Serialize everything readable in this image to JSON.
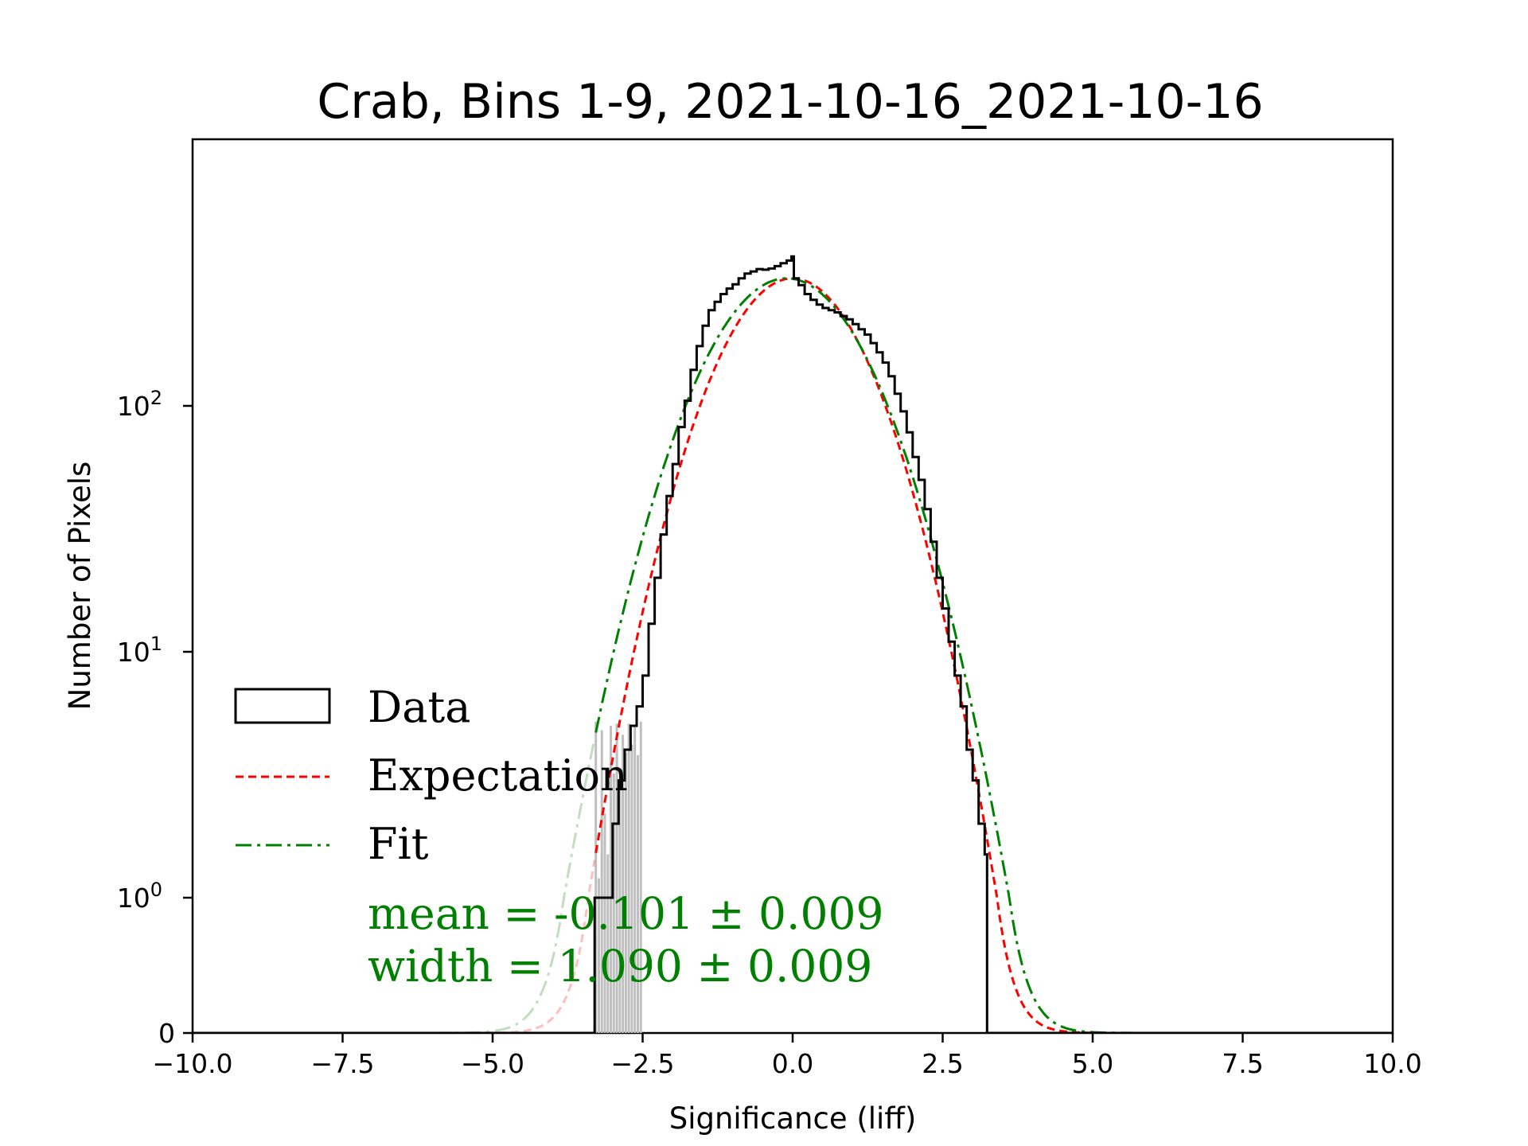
{
  "chart_data": {
    "type": "histogram",
    "title": "Crab, Bins 1-9, 2021-10-16_2021-10-16",
    "xlabel": "Significance (liff)",
    "ylabel": "Number of Pixels",
    "xlim": [
      -10,
      10
    ],
    "yscale": "symlog",
    "x_ticks": [
      -10,
      -7.5,
      -5,
      -2.5,
      0,
      2.5,
      5,
      7.5,
      10
    ],
    "x_tick_labels": [
      "−10.0",
      "−7.5",
      "−5.0",
      "−2.5",
      "0.0",
      "2.5",
      "5.0",
      "7.5",
      "10.0"
    ],
    "y_ticks": [
      {
        "value": 0,
        "label": "0"
      },
      {
        "value": 1,
        "label": "10",
        "exp": "0"
      },
      {
        "value": 10,
        "label": "10",
        "exp": "1"
      },
      {
        "value": 100,
        "label": "10",
        "exp": "2"
      }
    ],
    "data_hist": {
      "name": "Data",
      "bin_width": 0.05,
      "points": [
        [
          -3.3,
          1
        ],
        [
          -3.2,
          1
        ],
        [
          -3.1,
          1
        ],
        [
          -3.0,
          2
        ],
        [
          -2.9,
          3
        ],
        [
          -2.8,
          4
        ],
        [
          -2.7,
          5
        ],
        [
          -2.6,
          6
        ],
        [
          -2.5,
          8
        ],
        [
          -2.4,
          13
        ],
        [
          -2.3,
          20
        ],
        [
          -2.2,
          30
        ],
        [
          -2.1,
          43
        ],
        [
          -2.0,
          58
        ],
        [
          -1.9,
          82
        ],
        [
          -1.8,
          105
        ],
        [
          -1.7,
          140
        ],
        [
          -1.6,
          175
        ],
        [
          -1.5,
          212
        ],
        [
          -1.4,
          245
        ],
        [
          -1.3,
          265
        ],
        [
          -1.2,
          285
        ],
        [
          -1.1,
          300
        ],
        [
          -1.0,
          312
        ],
        [
          -0.9,
          330
        ],
        [
          -0.8,
          345
        ],
        [
          -0.7,
          352
        ],
        [
          -0.6,
          360
        ],
        [
          -0.5,
          358
        ],
        [
          -0.4,
          362
        ],
        [
          -0.3,
          370
        ],
        [
          -0.2,
          380
        ],
        [
          -0.1,
          390
        ],
        [
          -0.02,
          405
        ],
        [
          0.02,
          330
        ],
        [
          0.1,
          310
        ],
        [
          0.2,
          285
        ],
        [
          0.3,
          270
        ],
        [
          0.4,
          258
        ],
        [
          0.5,
          250
        ],
        [
          0.6,
          245
        ],
        [
          0.7,
          240
        ],
        [
          0.8,
          232
        ],
        [
          0.9,
          225
        ],
        [
          1.0,
          215
        ],
        [
          1.1,
          205
        ],
        [
          1.2,
          195
        ],
        [
          1.3,
          180
        ],
        [
          1.4,
          165
        ],
        [
          1.5,
          150
        ],
        [
          1.6,
          132
        ],
        [
          1.7,
          112
        ],
        [
          1.8,
          95
        ],
        [
          1.9,
          78
        ],
        [
          2.0,
          62
        ],
        [
          2.1,
          50
        ],
        [
          2.2,
          38
        ],
        [
          2.3,
          28
        ],
        [
          2.4,
          20
        ],
        [
          2.5,
          15
        ],
        [
          2.6,
          11
        ],
        [
          2.7,
          8
        ],
        [
          2.8,
          6
        ],
        [
          2.9,
          4
        ],
        [
          3.0,
          3
        ],
        [
          3.1,
          2
        ],
        [
          3.2,
          1.5
        ],
        [
          3.24,
          0
        ]
      ]
    },
    "low_stats_bins": {
      "points": [
        [
          -3.3,
          5.2
        ],
        [
          -3.25,
          1.2
        ],
        [
          -3.2,
          4.8
        ],
        [
          -3.15,
          2.2
        ],
        [
          -3.1,
          1.5
        ],
        [
          -3.05,
          5.0
        ],
        [
          -3.0,
          3.2
        ],
        [
          -2.95,
          5.1
        ],
        [
          -2.9,
          3.0
        ],
        [
          -2.85,
          4.6
        ],
        [
          -2.8,
          3.9
        ],
        [
          -2.75,
          5.1
        ],
        [
          -2.7,
          4.2
        ],
        [
          -2.65,
          5.0
        ],
        [
          -2.6,
          3.8
        ],
        [
          -2.55,
          5.2
        ]
      ]
    },
    "expectation": {
      "name": "Expectation",
      "mean": 0.0,
      "width": 1.0,
      "peak": 330
    },
    "fit": {
      "name": "Fit",
      "mean": -0.101,
      "width": 1.09,
      "peak": 330
    },
    "annotations": [
      "mean = -0.101 ± 0.009",
      "width = 1.090 ± 0.009"
    ],
    "legend": {
      "position": "left",
      "entries": [
        "Data",
        "Expectation",
        "Fit"
      ]
    },
    "colors": {
      "data": "#000000",
      "expectation": "#ff0000",
      "fit": "#008000",
      "low_stats": "#bfbfbf"
    }
  }
}
